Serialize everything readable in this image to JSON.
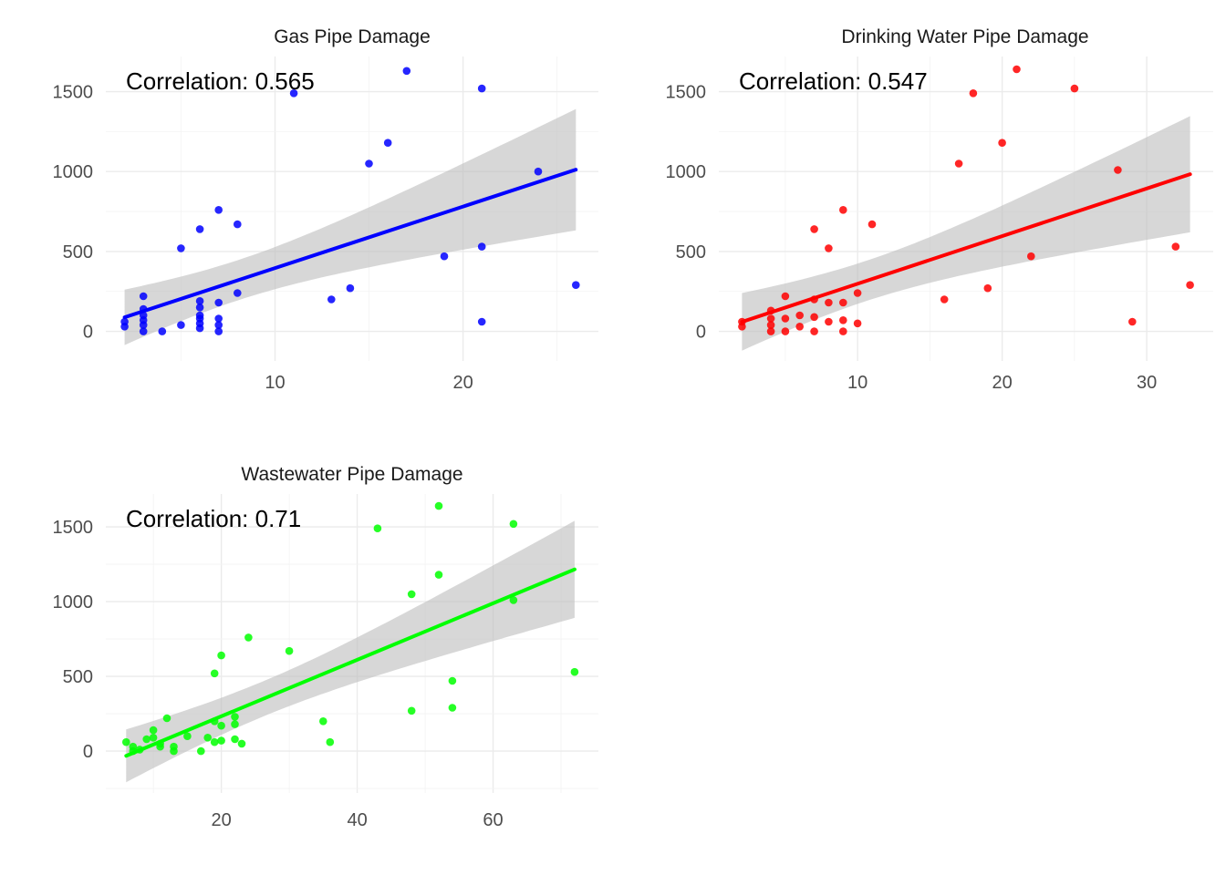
{
  "chart_data": [
    {
      "type": "scatter",
      "title": "Gas Pipe Damage",
      "annotation": "Correlation: 0.565",
      "color": "#0000ff",
      "xlabel": "",
      "ylabel": "",
      "xlim": [
        1.0,
        27.2
      ],
      "ylim": [
        -185,
        1720
      ],
      "x_ticks": [
        10,
        20
      ],
      "y_ticks": [
        0,
        500,
        1000,
        1500
      ],
      "grid": true,
      "fit": {
        "slope": 38.5,
        "intercept": 11,
        "se_at_mean": 62,
        "x_mean": 8,
        "sxx": 1480
      },
      "points": [
        [
          2,
          30
        ],
        [
          2,
          60
        ],
        [
          3,
          0
        ],
        [
          3,
          40
        ],
        [
          3,
          70
        ],
        [
          3,
          100
        ],
        [
          3,
          140
        ],
        [
          3,
          220
        ],
        [
          4,
          0
        ],
        [
          5,
          40
        ],
        [
          5,
          520
        ],
        [
          6,
          20
        ],
        [
          6,
          50
        ],
        [
          6,
          80
        ],
        [
          6,
          100
        ],
        [
          6,
          150
        ],
        [
          6,
          190
        ],
        [
          6,
          640
        ],
        [
          7,
          0
        ],
        [
          7,
          40
        ],
        [
          7,
          80
        ],
        [
          7,
          180
        ],
        [
          7,
          760
        ],
        [
          8,
          240
        ],
        [
          8,
          670
        ],
        [
          11,
          1490
        ],
        [
          13,
          200
        ],
        [
          14,
          270
        ],
        [
          15,
          1050
        ],
        [
          16,
          1180
        ],
        [
          17,
          1630
        ],
        [
          19,
          470
        ],
        [
          21,
          60
        ],
        [
          21,
          530
        ],
        [
          21,
          1520
        ],
        [
          24,
          1000
        ],
        [
          26,
          290
        ]
      ]
    },
    {
      "type": "scatter",
      "title": "Drinking Water Pipe Damage",
      "annotation": "Correlation: 0.547",
      "color": "#ff0000",
      "xlabel": "",
      "ylabel": "",
      "xlim": [
        0.4,
        34.6
      ],
      "ylim": [
        -185,
        1720
      ],
      "x_ticks": [
        10,
        20,
        30
      ],
      "y_ticks": [
        0,
        500,
        1000,
        1500
      ],
      "grid": true,
      "fit": {
        "slope": 29.8,
        "intercept": 0,
        "se_at_mean": 62,
        "x_mean": 10.5,
        "sxx": 2550
      },
      "points": [
        [
          2,
          30
        ],
        [
          2,
          60
        ],
        [
          4,
          0
        ],
        [
          4,
          40
        ],
        [
          4,
          80
        ],
        [
          4,
          130
        ],
        [
          5,
          0
        ],
        [
          5,
          80
        ],
        [
          5,
          220
        ],
        [
          6,
          30
        ],
        [
          6,
          100
        ],
        [
          7,
          0
        ],
        [
          7,
          90
        ],
        [
          7,
          200
        ],
        [
          7,
          640
        ],
        [
          8,
          60
        ],
        [
          8,
          180
        ],
        [
          8,
          520
        ],
        [
          9,
          0
        ],
        [
          9,
          70
        ],
        [
          9,
          180
        ],
        [
          9,
          760
        ],
        [
          10,
          50
        ],
        [
          10,
          240
        ],
        [
          11,
          670
        ],
        [
          16,
          200
        ],
        [
          17,
          1050
        ],
        [
          18,
          1490
        ],
        [
          19,
          270
        ],
        [
          20,
          1180
        ],
        [
          21,
          1640
        ],
        [
          22,
          470
        ],
        [
          25,
          1520
        ],
        [
          28,
          1010
        ],
        [
          29,
          60
        ],
        [
          32,
          530
        ],
        [
          33,
          290
        ]
      ]
    },
    {
      "type": "scatter",
      "title": "Wastewater Pipe Damage",
      "annotation": "Correlation: 0.71",
      "color": "#00ff00",
      "xlabel": "",
      "ylabel": "",
      "xlim": [
        3.0,
        75.5
      ],
      "ylim": [
        -280,
        1720
      ],
      "x_ticks": [
        20,
        40,
        60
      ],
      "y_ticks": [
        0,
        500,
        1000,
        1500
      ],
      "grid": true,
      "fit": {
        "slope": 18.9,
        "intercept": -145,
        "se_at_mean": 58,
        "x_mean": 26,
        "sxx": 12500
      },
      "points": [
        [
          6,
          60
        ],
        [
          7,
          0
        ],
        [
          7,
          30
        ],
        [
          8,
          10
        ],
        [
          9,
          80
        ],
        [
          10,
          140
        ],
        [
          10,
          90
        ],
        [
          11,
          50
        ],
        [
          11,
          30
        ],
        [
          12,
          220
        ],
        [
          13,
          0
        ],
        [
          13,
          30
        ],
        [
          15,
          100
        ],
        [
          17,
          0
        ],
        [
          18,
          90
        ],
        [
          19,
          200
        ],
        [
          19,
          520
        ],
        [
          19,
          60
        ],
        [
          20,
          170
        ],
        [
          20,
          640
        ],
        [
          20,
          70
        ],
        [
          22,
          230
        ],
        [
          22,
          180
        ],
        [
          22,
          80
        ],
        [
          23,
          50
        ],
        [
          24,
          760
        ],
        [
          30,
          670
        ],
        [
          35,
          200
        ],
        [
          36,
          60
        ],
        [
          43,
          1490
        ],
        [
          48,
          1050
        ],
        [
          48,
          270
        ],
        [
          52,
          1640
        ],
        [
          52,
          1180
        ],
        [
          54,
          470
        ],
        [
          54,
          290
        ],
        [
          63,
          1520
        ],
        [
          63,
          1010
        ],
        [
          72,
          530
        ]
      ]
    }
  ]
}
